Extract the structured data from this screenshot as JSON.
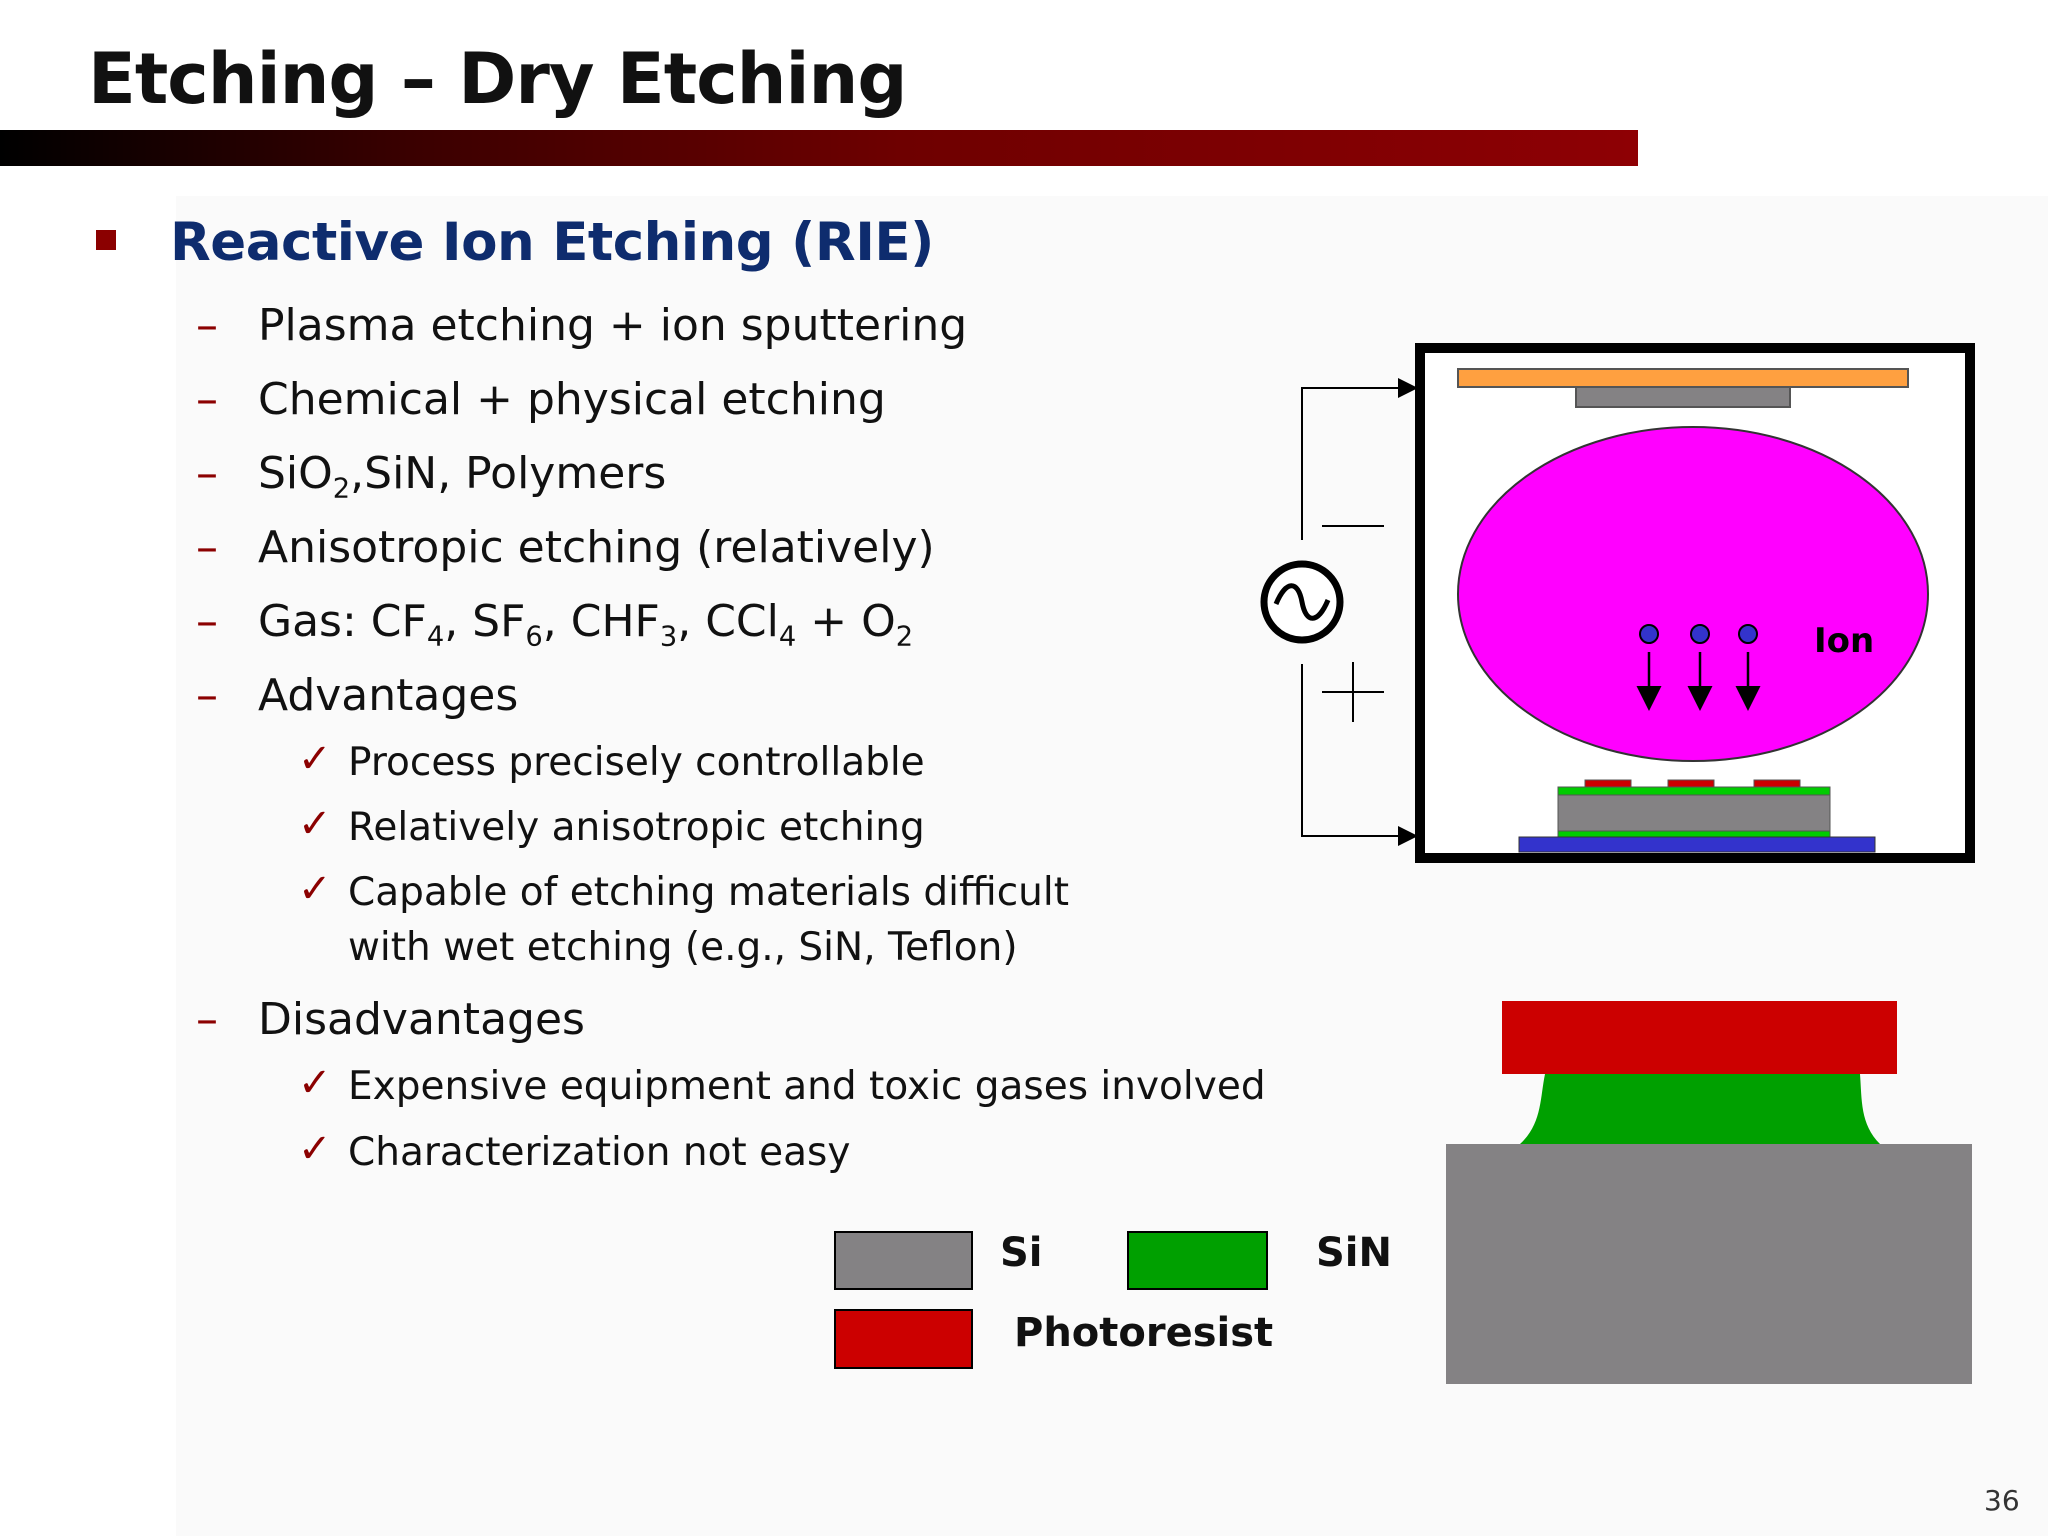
{
  "slide": {
    "title": "Etching – Dry Etching",
    "page_number": "36"
  },
  "heading": "Reactive Ion Etching (RIE)",
  "points": [
    {
      "text": "Plasma etching + ion sputtering"
    },
    {
      "text": "Chemical + physical etching"
    },
    {
      "text": "SiO2,SiN, Polymers"
    },
    {
      "text": "Anisotropic etching (relatively)"
    },
    {
      "text": "Gas: CF4, SF6, CHF3, CCl4 + O2"
    },
    {
      "text": "Advantages"
    },
    {
      "text": "Disadvantages"
    }
  ],
  "advantages": [
    "Process precisely controllable",
    "Relatively anisotropic etching",
    "Capable of etching materials difficult",
    "with wet etching (e.g., SiN, Teflon)"
  ],
  "disadvantages": [
    "Expensive equipment and toxic gases involved",
    "Characterization not easy"
  ],
  "chamber": {
    "ion_label": "Ion",
    "minus_sign": "—",
    "plus_sign": "+"
  },
  "legend": {
    "items": [
      {
        "label": "Si",
        "color": "#848284"
      },
      {
        "label": "SiN",
        "color": "#00a000"
      },
      {
        "label": "Photoresist",
        "color": "#cc0000"
      }
    ]
  },
  "colors": {
    "heading": "#0e2c6e",
    "bullet": "#8b0000",
    "plasma": "#ff00ff",
    "electrode_top": "#ffa040",
    "substrate_bottom": "#3333cc"
  }
}
